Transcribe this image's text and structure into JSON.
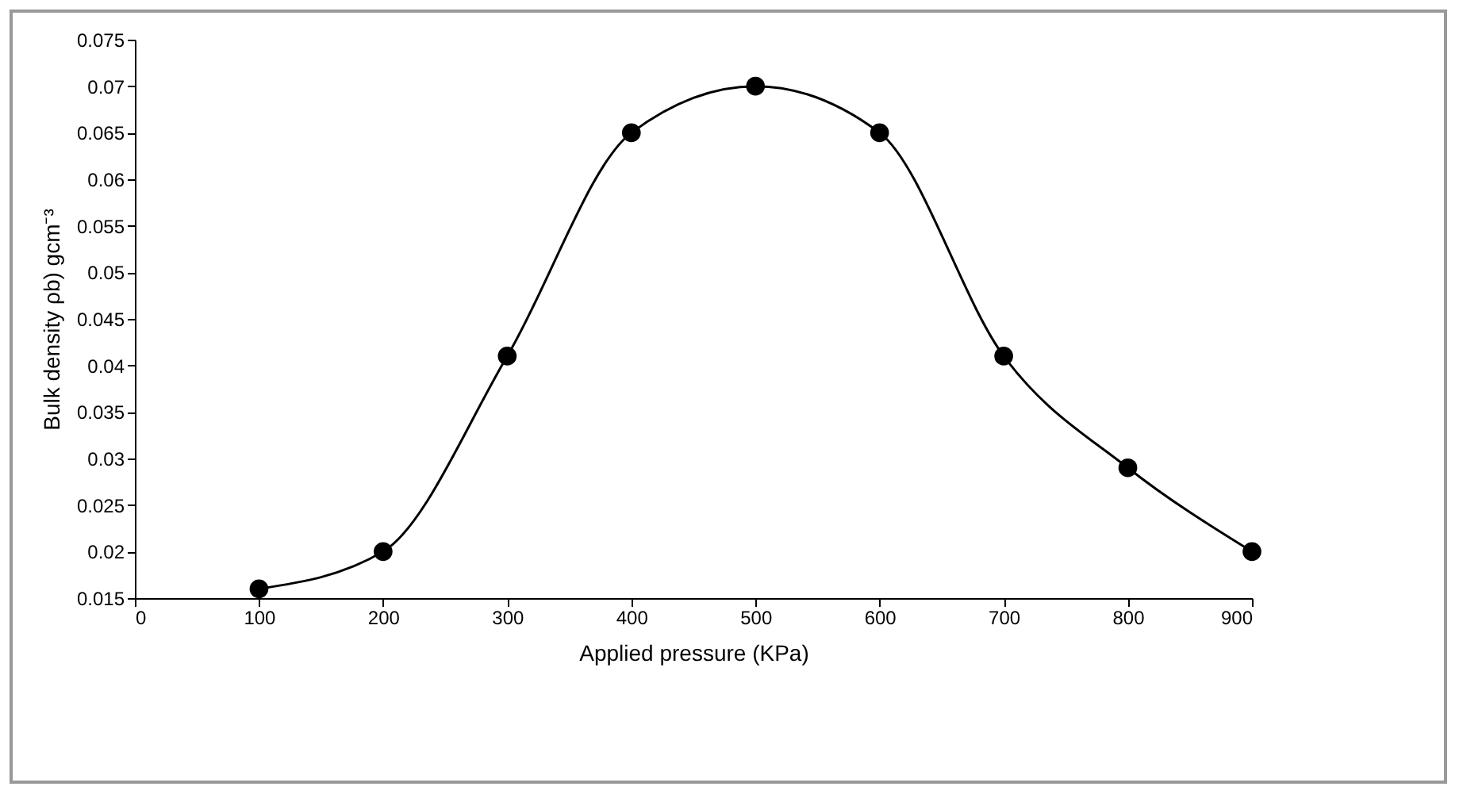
{
  "chart_data": {
    "type": "line",
    "xlabel": "Applied pressure (KPa)",
    "ylabel": "Bulk density ρb) gcm⁻³",
    "x": [
      100,
      200,
      300,
      400,
      500,
      600,
      700,
      800,
      900
    ],
    "series": [
      {
        "color": "#000000",
        "values": [
          0.016,
          0.02,
          0.041,
          0.065,
          0.07,
          0.065,
          0.041,
          0.029,
          0.02
        ]
      }
    ],
    "xlim": [
      0,
      900
    ],
    "xticks": [
      0,
      100,
      200,
      300,
      400,
      500,
      600,
      700,
      800,
      900
    ],
    "ylim": [
      0.015,
      0.075
    ],
    "yticks": [
      0.015,
      0.02,
      0.025,
      0.03,
      0.035,
      0.04,
      0.045,
      0.05,
      0.055,
      0.06,
      0.065,
      0.07,
      0.075
    ],
    "grid": false,
    "legend": false,
    "marker": "circle",
    "line_style": "solid"
  }
}
